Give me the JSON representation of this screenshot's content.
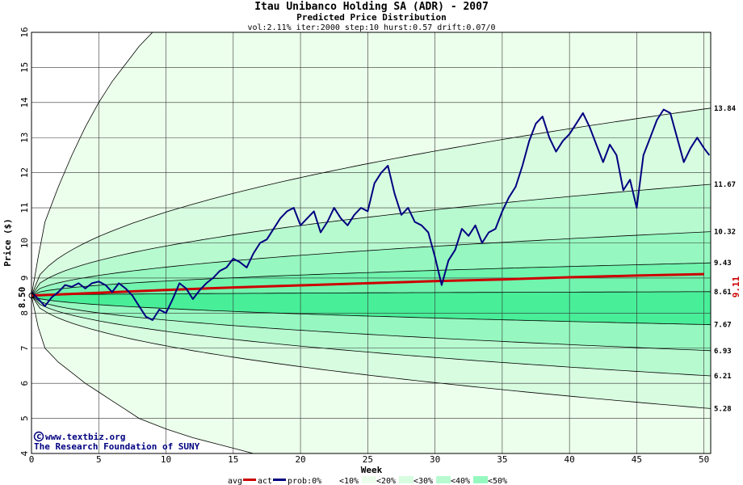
{
  "header": {
    "title": "Itau Unibanco Holding SA (ADR) - 2007",
    "subtitle": "Predicted Price Distribution",
    "params": "vol:2.11% iter:2000 step:10 hurst:0.57 drift:0.07/0"
  },
  "axes": {
    "xlabel": "Week",
    "ylabel": "Price ($)"
  },
  "start_price_label": "8.50",
  "final_avg_label": "9.11",
  "credits": {
    "site": "www.textbiz.org",
    "org": "The Research Foundation of SUNY"
  },
  "legend": {
    "avg": "avg",
    "act": "act",
    "prob0": "prob:0%",
    "lt10": "<10%",
    "lt20": "<20%",
    "lt30": "<30%",
    "lt40": "<40%",
    "lt50": "<50%"
  },
  "colors": {
    "grid": "#000000",
    "avg_line": "#cc0000",
    "actual_line": "#000080",
    "band_outer": "#ecffec",
    "band_10": "#d8fce0",
    "band_20": "#b8fad0",
    "band_30": "#96f8c0",
    "band_40": "#70f4ae",
    "band_50": "#48ee98"
  },
  "chart_data": {
    "type": "line",
    "title": "Itau Unibanco Holding SA (ADR) - 2007",
    "subtitle": "Predicted Price Distribution",
    "xlabel": "Week",
    "ylabel": "Price ($)",
    "xlim": [
      0,
      50.5
    ],
    "ylim": [
      4,
      16
    ],
    "x_ticks": [
      0,
      5,
      10,
      15,
      20,
      25,
      30,
      35,
      40,
      45,
      50
    ],
    "y_ticks": [
      4,
      5,
      6,
      7,
      8,
      9,
      10,
      11,
      12,
      13,
      14,
      15,
      16
    ],
    "grid": true,
    "start_price": 8.5,
    "percentile_end_labels": [
      "13.84",
      "11.67",
      "10.32",
      "9.43",
      "8.61",
      "7.67",
      "6.93",
      "6.21",
      "5.28"
    ],
    "percentile_end_values": [
      13.84,
      11.67,
      10.32,
      9.43,
      8.61,
      7.67,
      6.93,
      6.21,
      5.28
    ],
    "outer_envelope": {
      "upper": [
        [
          0,
          8.5
        ],
        [
          0.5,
          9.6
        ],
        [
          1,
          10.6
        ],
        [
          2,
          11.6
        ],
        [
          3,
          12.5
        ],
        [
          4,
          13.3
        ],
        [
          5,
          14.0
        ],
        [
          6,
          14.6
        ],
        [
          7,
          15.1
        ],
        [
          8,
          15.6
        ],
        [
          9,
          16.0
        ]
      ],
      "lower": [
        [
          0,
          8.5
        ],
        [
          0.5,
          7.6
        ],
        [
          1,
          7.0
        ],
        [
          2,
          6.6
        ],
        [
          3,
          6.3
        ],
        [
          4,
          6.0
        ],
        [
          5,
          5.75
        ],
        [
          6,
          5.5
        ],
        [
          7,
          5.25
        ],
        [
          8,
          5.0
        ],
        [
          10,
          4.7
        ],
        [
          12,
          4.45
        ],
        [
          14,
          4.25
        ],
        [
          16.5,
          4.0
        ]
      ]
    },
    "series": [
      {
        "name": "avg",
        "x": [
          0,
          5,
          10,
          15,
          20,
          25,
          30,
          35,
          40,
          45,
          50
        ],
        "values": [
          8.5,
          8.58,
          8.66,
          8.73,
          8.79,
          8.85,
          8.91,
          8.96,
          9.02,
          9.07,
          9.11
        ]
      },
      {
        "name": "act",
        "x": [
          0,
          0.5,
          1,
          1.5,
          2,
          2.5,
          3,
          3.5,
          4,
          4.5,
          5,
          5.5,
          6,
          6.5,
          7,
          7.5,
          8,
          8.5,
          9,
          9.5,
          10,
          10.5,
          11,
          11.5,
          12,
          12.5,
          13,
          13.5,
          14,
          14.5,
          15,
          15.5,
          16,
          16.5,
          17,
          17.5,
          18,
          18.5,
          19,
          19.5,
          20,
          20.5,
          21,
          21.5,
          22,
          22.5,
          23,
          23.5,
          24,
          24.5,
          25,
          25.5,
          26,
          26.5,
          27,
          27.5,
          28,
          28.5,
          29,
          29.5,
          30,
          30.5,
          31,
          31.5,
          32,
          32.5,
          33,
          33.5,
          34,
          34.5,
          35,
          35.5,
          36,
          36.5,
          37,
          37.5,
          38,
          38.5,
          39,
          39.5,
          40,
          40.5,
          41,
          41.5,
          42,
          42.5,
          43,
          43.5,
          44,
          44.5,
          45,
          45.5,
          46,
          46.5,
          47,
          47.5,
          48,
          48.5,
          49,
          49.5,
          50,
          50.4
        ],
        "values": [
          8.6,
          8.4,
          8.2,
          8.45,
          8.6,
          8.8,
          8.75,
          8.85,
          8.7,
          8.85,
          8.9,
          8.8,
          8.6,
          8.85,
          8.7,
          8.5,
          8.2,
          7.9,
          7.8,
          8.1,
          8.0,
          8.4,
          8.85,
          8.7,
          8.4,
          8.65,
          8.85,
          9.0,
          9.2,
          9.3,
          9.55,
          9.45,
          9.3,
          9.7,
          10.0,
          10.1,
          10.4,
          10.7,
          10.9,
          11.0,
          10.5,
          10.7,
          10.9,
          10.3,
          10.6,
          11.0,
          10.7,
          10.5,
          10.8,
          11.0,
          10.9,
          11.7,
          12.0,
          12.2,
          11.4,
          10.8,
          11.0,
          10.6,
          10.5,
          10.3,
          9.6,
          8.8,
          9.5,
          9.8,
          10.4,
          10.2,
          10.5,
          10.0,
          10.3,
          10.4,
          10.9,
          11.3,
          11.6,
          12.2,
          12.9,
          13.4,
          13.6,
          13.0,
          12.6,
          12.9,
          13.1,
          13.4,
          13.7,
          13.3,
          12.8,
          12.3,
          12.8,
          12.5,
          11.5,
          11.8,
          11.0,
          12.5,
          13.0,
          13.5,
          13.8,
          13.7,
          13.0,
          12.3,
          12.7,
          13.0,
          12.7,
          12.5
        ]
      }
    ]
  }
}
